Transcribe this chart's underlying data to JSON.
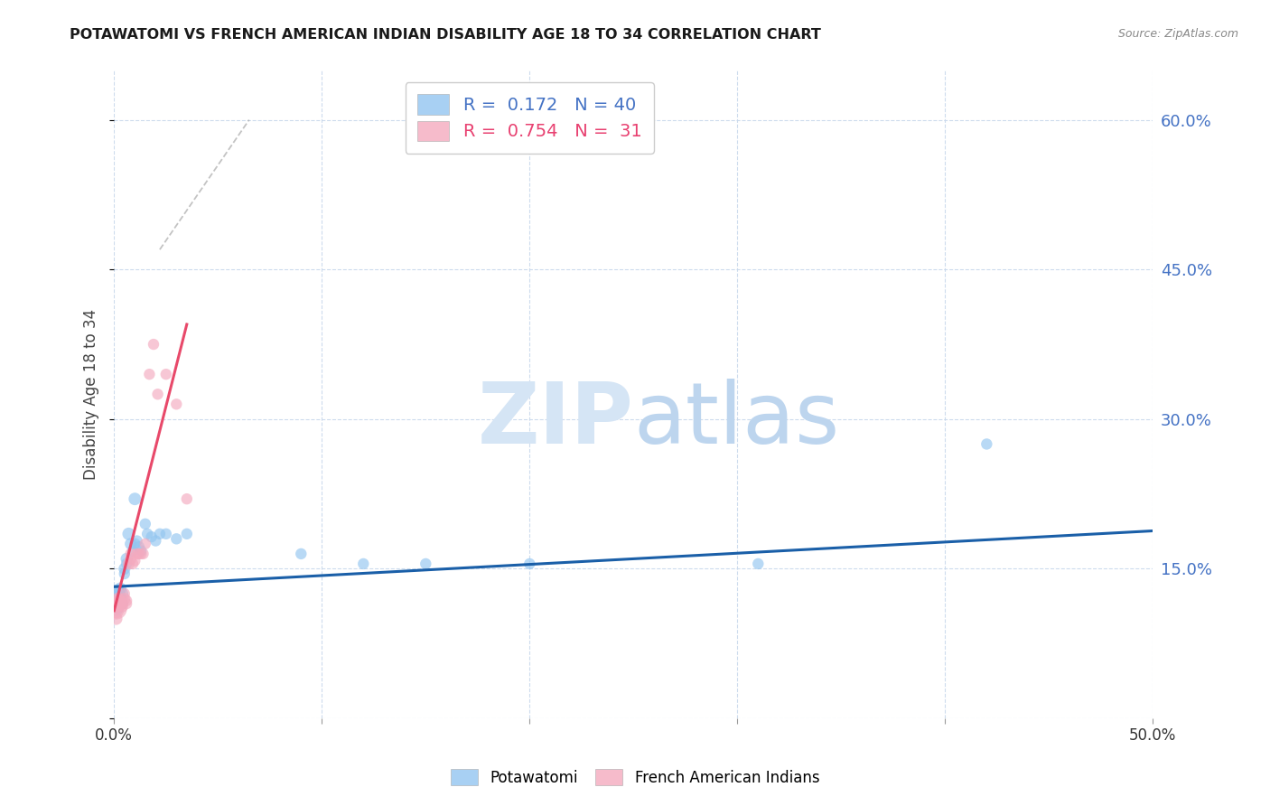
{
  "title": "POTAWATOMI VS FRENCH AMERICAN INDIAN DISABILITY AGE 18 TO 34 CORRELATION CHART",
  "source": "Source: ZipAtlas.com",
  "ylabel": "Disability Age 18 to 34",
  "xlim": [
    0.0,
    0.5
  ],
  "ylim": [
    0.0,
    0.65
  ],
  "potawatomi_color": "#92C5F0",
  "french_color": "#F4AABF",
  "blue_line_color": "#1A5FA8",
  "pink_line_color": "#E8496A",
  "watermark_zip": "ZIP",
  "watermark_atlas": "atlas",
  "watermark_color": "#D5E5F5",
  "potawatomi_x": [
    0.001,
    0.001,
    0.001,
    0.001,
    0.001,
    0.002,
    0.002,
    0.002,
    0.002,
    0.003,
    0.003,
    0.003,
    0.004,
    0.004,
    0.005,
    0.005,
    0.006,
    0.006,
    0.007,
    0.008,
    0.009,
    0.01,
    0.01,
    0.011,
    0.012,
    0.013,
    0.015,
    0.016,
    0.018,
    0.02,
    0.022,
    0.025,
    0.03,
    0.035,
    0.09,
    0.12,
    0.15,
    0.2,
    0.31,
    0.42
  ],
  "potawatomi_y": [
    0.118,
    0.125,
    0.115,
    0.11,
    0.12,
    0.122,
    0.128,
    0.115,
    0.112,
    0.13,
    0.12,
    0.118,
    0.125,
    0.115,
    0.15,
    0.145,
    0.16,
    0.155,
    0.185,
    0.175,
    0.168,
    0.22,
    0.175,
    0.178,
    0.172,
    0.168,
    0.195,
    0.185,
    0.182,
    0.178,
    0.185,
    0.185,
    0.18,
    0.185,
    0.165,
    0.155,
    0.155,
    0.155,
    0.155,
    0.275
  ],
  "potawatomi_sizes": [
    300,
    200,
    160,
    130,
    120,
    120,
    110,
    100,
    90,
    100,
    100,
    90,
    90,
    80,
    90,
    80,
    90,
    80,
    100,
    90,
    80,
    100,
    80,
    80,
    80,
    80,
    80,
    80,
    80,
    80,
    80,
    80,
    80,
    80,
    80,
    80,
    80,
    80,
    80,
    80
  ],
  "french_x": [
    0.001,
    0.001,
    0.001,
    0.001,
    0.002,
    0.002,
    0.002,
    0.003,
    0.003,
    0.004,
    0.004,
    0.005,
    0.005,
    0.006,
    0.006,
    0.007,
    0.008,
    0.008,
    0.009,
    0.01,
    0.011,
    0.012,
    0.013,
    0.014,
    0.015,
    0.017,
    0.019,
    0.021,
    0.025,
    0.03,
    0.035
  ],
  "french_y": [
    0.11,
    0.115,
    0.108,
    0.1,
    0.115,
    0.12,
    0.112,
    0.115,
    0.118,
    0.115,
    0.112,
    0.12,
    0.125,
    0.115,
    0.118,
    0.155,
    0.16,
    0.165,
    0.155,
    0.158,
    0.165,
    0.165,
    0.165,
    0.165,
    0.175,
    0.345,
    0.375,
    0.325,
    0.345,
    0.315,
    0.22
  ],
  "french_sizes": [
    300,
    200,
    150,
    100,
    100,
    100,
    90,
    90,
    90,
    90,
    80,
    90,
    80,
    80,
    80,
    90,
    90,
    80,
    80,
    80,
    80,
    80,
    80,
    80,
    80,
    80,
    80,
    80,
    80,
    80,
    80
  ],
  "blue_line_x": [
    0.0,
    0.5
  ],
  "blue_line_y": [
    0.132,
    0.188
  ],
  "pink_line_x": [
    0.0,
    0.035
  ],
  "pink_line_y": [
    0.108,
    0.395
  ],
  "dash_line_x": [
    0.022,
    0.065
  ],
  "dash_line_y": [
    0.47,
    0.6
  ]
}
